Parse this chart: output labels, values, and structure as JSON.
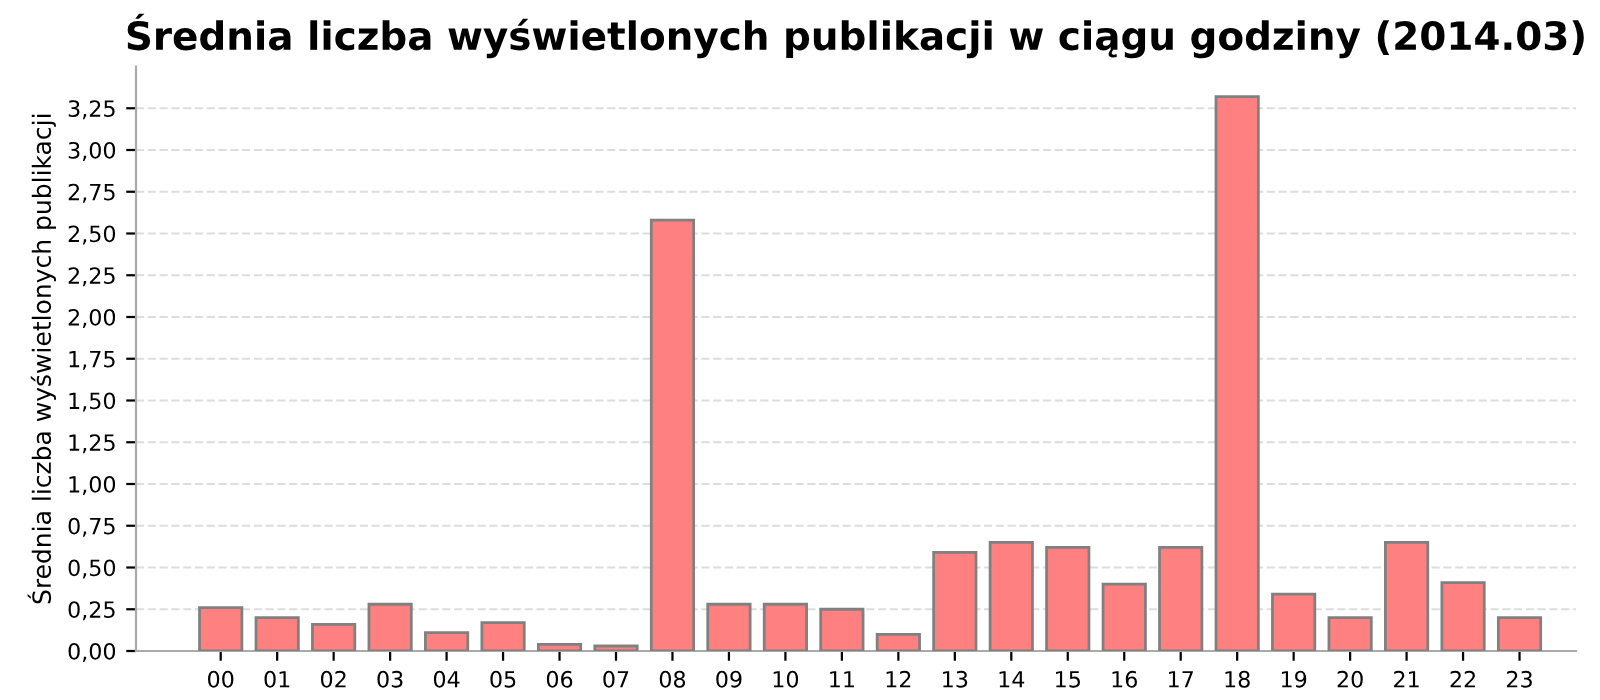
{
  "chart_data": {
    "type": "bar",
    "title": "Średnia liczba wyświetlonych publikacji w ciągu godziny (2014.03)",
    "ylabel": "Średnia liczba wyświetlonych publikacji",
    "categories": [
      "00",
      "01",
      "02",
      "03",
      "04",
      "05",
      "06",
      "07",
      "08",
      "09",
      "10",
      "11",
      "12",
      "13",
      "14",
      "15",
      "16",
      "17",
      "18",
      "19",
      "20",
      "21",
      "22",
      "23"
    ],
    "values": [
      0.26,
      0.2,
      0.16,
      0.28,
      0.11,
      0.17,
      0.04,
      0.03,
      2.58,
      0.28,
      0.28,
      0.25,
      0.1,
      0.59,
      0.65,
      0.62,
      0.4,
      0.62,
      3.32,
      0.34,
      0.2,
      0.65,
      0.41,
      0.2
    ],
    "color": "#ff8080",
    "ylim": [
      0,
      3.5
    ],
    "yticks": [
      {
        "value": 0,
        "label": "0,00"
      },
      {
        "value": 0.25,
        "label": "0,25"
      },
      {
        "value": 0.5,
        "label": "0,50"
      },
      {
        "value": 0.75,
        "label": "0,75"
      },
      {
        "value": 1,
        "label": "1,00"
      },
      {
        "value": 1.25,
        "label": "1,25"
      },
      {
        "value": 1.5,
        "label": "1,50"
      },
      {
        "value": 1.75,
        "label": "1,75"
      },
      {
        "value": 2,
        "label": "2,00"
      },
      {
        "value": 2.25,
        "label": "2,25"
      },
      {
        "value": 2.5,
        "label": "2,50"
      },
      {
        "value": 2.75,
        "label": "2,75"
      },
      {
        "value": 3,
        "label": "3,00"
      },
      {
        "value": 3.25,
        "label": "3,25"
      }
    ],
    "grid": "y",
    "legend": false
  }
}
